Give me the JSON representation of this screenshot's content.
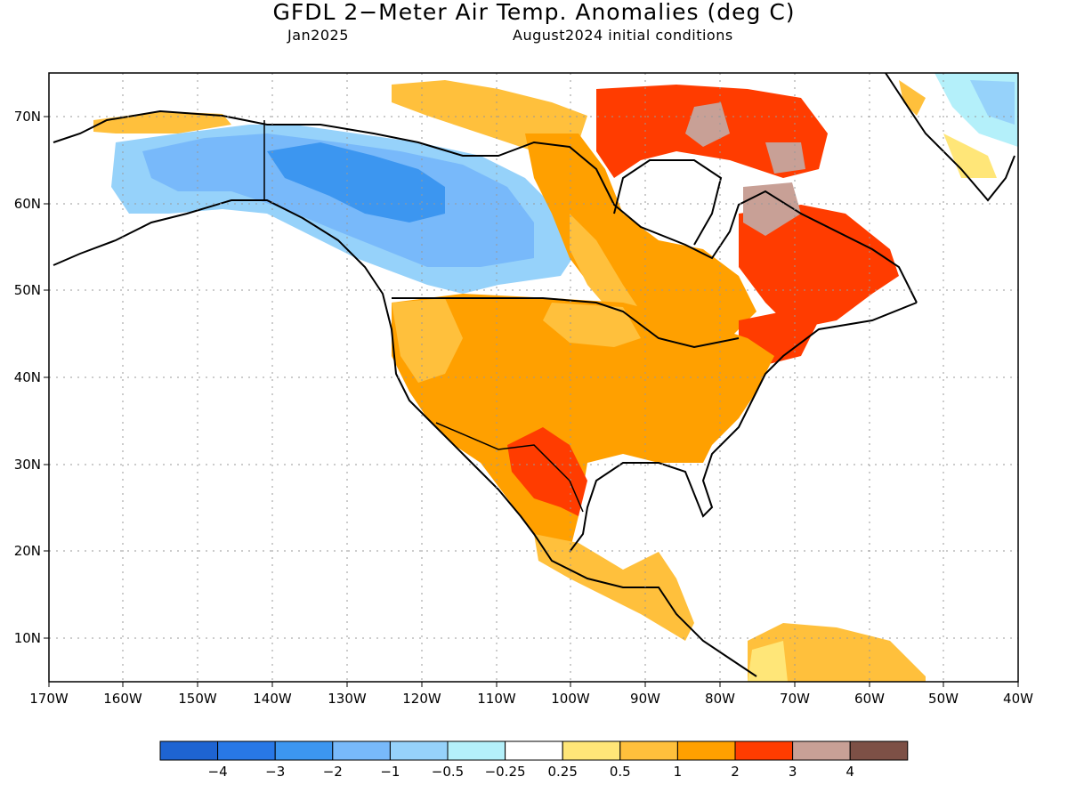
{
  "header": {
    "title": "GFDL 2−Meter Air Temp. Anomalies (deg C)",
    "valid_month": "Jan2025",
    "init_conditions": "August2024 initial conditions"
  },
  "axes": {
    "lat_labels": [
      "70N",
      "60N",
      "50N",
      "40N",
      "30N",
      "20N",
      "10N"
    ],
    "lon_labels": [
      "170W",
      "160W",
      "150W",
      "140W",
      "130W",
      "120W",
      "110W",
      "100W",
      "90W",
      "80W",
      "70W",
      "60W",
      "50W",
      "40W"
    ],
    "lat_range": [
      5,
      75
    ],
    "lon_range": [
      -170,
      -40
    ]
  },
  "colorbar": {
    "colors": [
      "#1e64d2",
      "#2878e6",
      "#3c96f0",
      "#78b9fa",
      "#96d2fa",
      "#b4f0fa",
      "#ffffff",
      "#ffe678",
      "#ffc03c",
      "#ffa000",
      "#ff3c00",
      "#c8a096",
      "#7d5046"
    ],
    "labels": [
      "−4",
      "−3",
      "−2",
      "−1",
      "−0.5",
      "−0.25",
      "0.25",
      "0.5",
      "1",
      "2",
      "3",
      "4"
    ]
  }
}
